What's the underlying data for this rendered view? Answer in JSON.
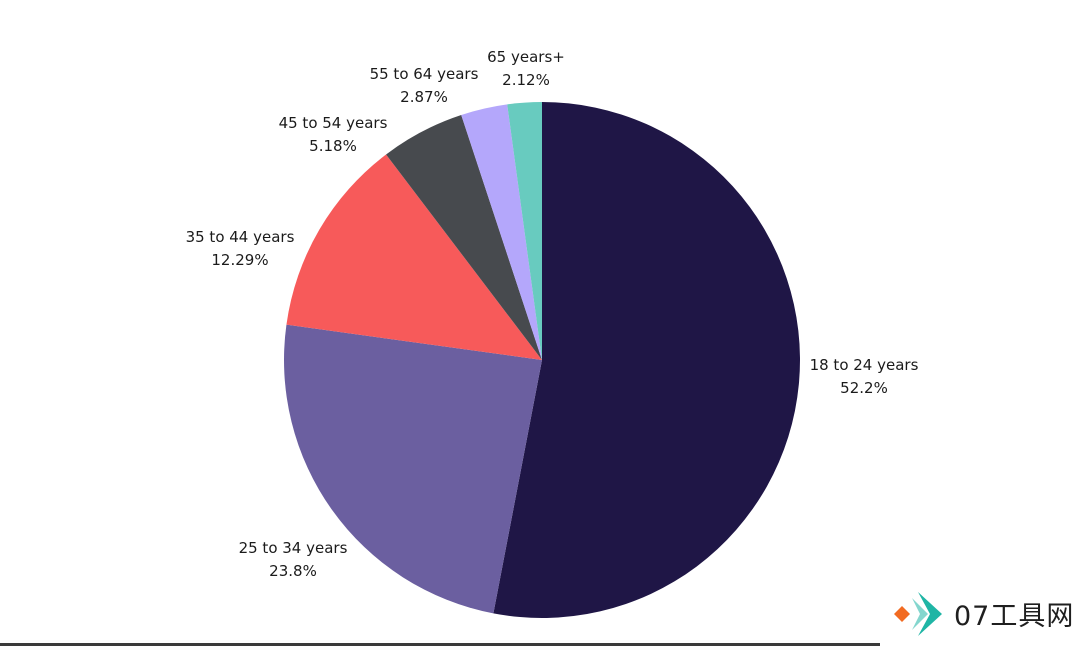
{
  "chart_data": {
    "type": "pie",
    "slices": [
      {
        "label": "18 to 24 years",
        "value_text": "52.2%",
        "value": 52.2,
        "color": "#1f1646"
      },
      {
        "label": "25 to 34 years",
        "value_text": "23.8%",
        "value": 23.8,
        "color": "#6b5fa0"
      },
      {
        "label": "35 to 44 years",
        "value_text": "12.29%",
        "value": 12.29,
        "color": "#f75a5a"
      },
      {
        "label": "45 to 54 years",
        "value_text": "5.18%",
        "value": 5.18,
        "color": "#474a4e"
      },
      {
        "label": "55 to 64 years",
        "value_text": "2.87%",
        "value": 2.87,
        "color": "#b4a7fb"
      },
      {
        "label": "65 years+",
        "value_text": "2.12%",
        "value": 2.12,
        "color": "#68cbbf"
      }
    ]
  },
  "watermark": {
    "text": "07工具网",
    "colors": {
      "orange": "#f26b21",
      "teal": "#1fb5a5"
    }
  }
}
